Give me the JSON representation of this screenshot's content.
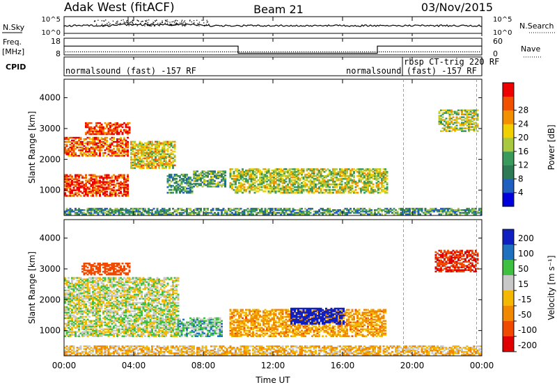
{
  "header": {
    "station": "Adak West (fitACF)",
    "beam": "Beam 21",
    "date": "03/Nov/2015"
  },
  "strips": {
    "nsky_label": "N.Sky",
    "nsearch_label": "N.Search",
    "nsky_ticks": [
      "10^5",
      "10^0"
    ],
    "freq_label": "Freq.",
    "freq_unit": "[MHz]",
    "freq_ticks": [
      "18",
      "8"
    ],
    "nave_label": "Nave",
    "nave_ticks": [
      "60",
      "0"
    ],
    "cpid_label": "CPID",
    "cpid_entries": [
      {
        "text": "normalsound (fast) -157 RF",
        "start_hour": 0
      },
      {
        "text": "normalsound (fast) -157 RF",
        "start_hour": 18.1
      },
      {
        "text": "rbsp CT-trig 220 RF",
        "start_hour": 19.5
      }
    ],
    "freq_segments": [
      {
        "from": 0,
        "to": 10.0,
        "freq_mhz": 13.3
      },
      {
        "from": 10.0,
        "to": 18.0,
        "freq_mhz": 9.0
      },
      {
        "from": 18.0,
        "to": 24.0,
        "freq_mhz": 13.3
      }
    ]
  },
  "axes": {
    "x_label": "Time UT",
    "x_ticks": [
      "00:00",
      "04:00",
      "08:00",
      "12:00",
      "16:00",
      "20:00",
      "00:00"
    ],
    "x_range_hours": [
      0,
      24
    ],
    "y_label": "Slant Range [km]",
    "y_ticks": [
      "1000",
      "2000",
      "3000",
      "4000"
    ],
    "y_range_km": [
      180,
      4600
    ]
  },
  "colors": {
    "power": [
      "#0000dd",
      "#1f5fbf",
      "#2e7a55",
      "#3a9a5c",
      "#a8c840",
      "#f0d000",
      "#f39000",
      "#f05000",
      "#ee0000"
    ],
    "velocity": [
      "#e00000",
      "#f04a00",
      "#f08800",
      "#f5b800",
      "#c8c8c8",
      "#40c040",
      "#2070c0",
      "#1020c0"
    ]
  },
  "chart_data": [
    {
      "type": "heatmap",
      "title": "Power",
      "colorbar_label": "Power [dB]",
      "colorbar_ticks": [
        "4",
        "8",
        "12",
        "16",
        "20",
        "24",
        "28"
      ],
      "xlabel": "",
      "ylabel": "Slant Range [km]",
      "xlim": [
        0,
        24
      ],
      "ylim": [
        180,
        4600
      ],
      "scatter_regions": [
        {
          "t0": 0.0,
          "t1": 3.7,
          "r0": 800,
          "r1": 1500,
          "value_db": 26
        },
        {
          "t0": 0.0,
          "t1": 3.7,
          "r0": 2100,
          "r1": 2700,
          "value_db": 24
        },
        {
          "t0": 1.2,
          "t1": 3.8,
          "r0": 2800,
          "r1": 3200,
          "value_db": 26
        },
        {
          "t0": 3.8,
          "t1": 6.3,
          "r0": 1700,
          "r1": 2600,
          "value_db": 18
        },
        {
          "t0": 5.9,
          "t1": 7.3,
          "r0": 900,
          "r1": 1500,
          "value_db": 10
        },
        {
          "t0": 7.4,
          "t1": 9.2,
          "r0": 1100,
          "r1": 1600,
          "value_db": 12
        },
        {
          "t0": 9.5,
          "t1": 18.6,
          "r0": 900,
          "r1": 1700,
          "value_db": 16
        },
        {
          "t0": 21.5,
          "t1": 23.8,
          "r0": 2900,
          "r1": 3600,
          "value_db": 16
        },
        {
          "t0": 0.0,
          "t1": 24.0,
          "r0": 200,
          "r1": 400,
          "value_db": 10
        }
      ]
    },
    {
      "type": "heatmap",
      "title": "Velocity",
      "colorbar_label": "Velocity [m s^-1]",
      "colorbar_ticks": [
        "200",
        "100",
        "50",
        "15",
        "-15",
        "-50",
        "-100",
        "-200"
      ],
      "xlabel": "Time UT",
      "ylabel": "Slant Range [km]",
      "xlim": [
        0,
        24
      ],
      "ylim": [
        180,
        4600
      ],
      "scatter_regions": [
        {
          "t0": 0.0,
          "t1": 6.5,
          "r0": 800,
          "r1": 2700,
          "value_ms": 0
        },
        {
          "t0": 1.0,
          "t1": 3.8,
          "r0": 2800,
          "r1": 3200,
          "value_ms": -150
        },
        {
          "t0": 6.5,
          "t1": 9.0,
          "r0": 800,
          "r1": 1400,
          "value_ms": 30
        },
        {
          "t0": 9.5,
          "t1": 18.5,
          "r0": 800,
          "r1": 1700,
          "value_ms": -60
        },
        {
          "t0": 13.0,
          "t1": 16.0,
          "r0": 1200,
          "r1": 1700,
          "value_ms": 200
        },
        {
          "t0": 21.3,
          "t1": 23.8,
          "r0": 2900,
          "r1": 3600,
          "value_ms": -200
        },
        {
          "t0": 0.0,
          "t1": 24.0,
          "r0": 200,
          "r1": 500,
          "value_ms": -40
        }
      ]
    }
  ]
}
